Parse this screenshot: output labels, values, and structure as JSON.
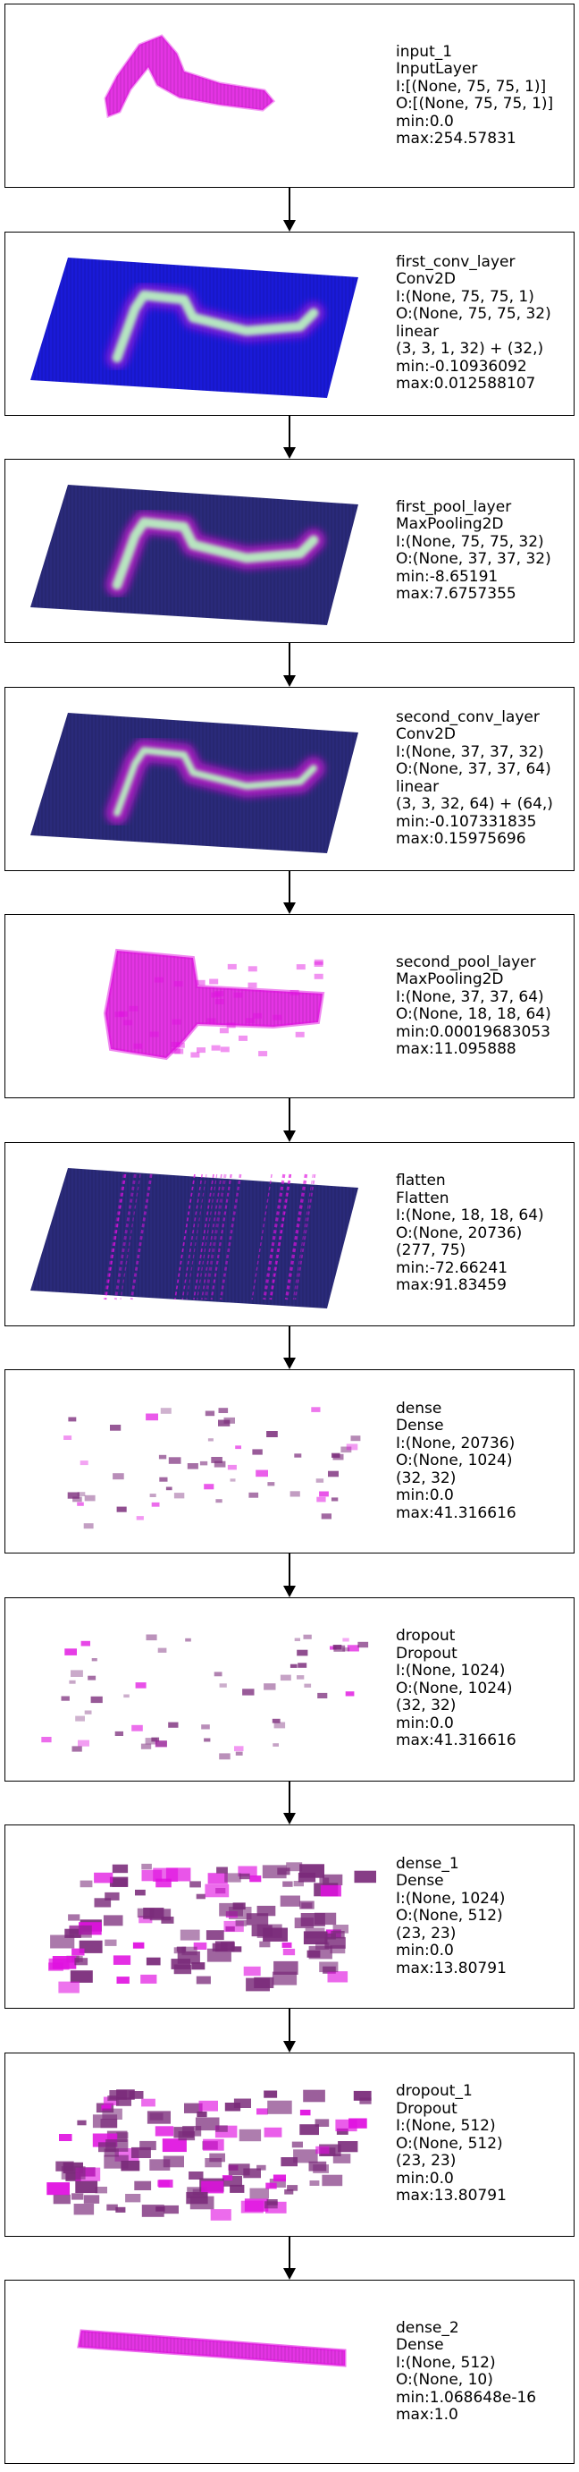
{
  "layers": [
    {
      "viz": "input-snake",
      "lines": [
        "input_1",
        "InputLayer",
        "I:[(None, 75, 75, 1)]",
        "O:[(None, 75, 75, 1)]",
        "min:0.0",
        "max:254.57831"
      ]
    },
    {
      "viz": "blue-plane-glow-snake",
      "lines": [
        "first_conv_layer",
        "Conv2D",
        "I:(None, 75, 75, 1)",
        "O:(None, 75, 75, 32)",
        "linear",
        "(3, 3, 1, 32) + (32,)",
        "min:-0.10936092",
        "max:0.012588107"
      ]
    },
    {
      "viz": "navy-plane-glow-snake",
      "lines": [
        "first_pool_layer",
        "MaxPooling2D",
        "I:(None, 75, 75, 32)",
        "O:(None, 37, 37, 32)",
        "min:-8.65191",
        "max:7.6757355"
      ]
    },
    {
      "viz": "navy-plane-faded-snake",
      "lines": [
        "second_conv_layer",
        "Conv2D",
        "I:(None, 37, 37, 32)",
        "O:(None, 37, 37, 64)",
        "linear",
        "(3, 3, 32, 64) + (64,)",
        "min:-0.107331835",
        "max:0.15975696"
      ]
    },
    {
      "viz": "magenta-blob-l-shape",
      "lines": [
        "second_pool_layer",
        "MaxPooling2D",
        "I:(None, 37, 37, 64)",
        "O:(None, 18, 18, 64)",
        "min:0.00019683053",
        "max:11.095888"
      ]
    },
    {
      "viz": "navy-plane-stripes",
      "lines": [
        "flatten",
        "Flatten",
        "I:(None, 18, 18, 64)",
        "O:(None, 20736)",
        "(277, 75)",
        "min:-72.66241",
        "max:91.83459"
      ]
    },
    {
      "viz": "sparse-scatter",
      "lines": [
        "dense",
        "Dense",
        "I:(None, 20736)",
        "O:(None, 1024)",
        "(32, 32)",
        "min:0.0",
        "max:41.316616"
      ]
    },
    {
      "viz": "sparse-scatter",
      "lines": [
        "dropout",
        "Dropout",
        "I:(None, 1024)",
        "O:(None, 1024)",
        "(32, 32)",
        "min:0.0",
        "max:41.316616"
      ]
    },
    {
      "viz": "dense-scatter",
      "lines": [
        "dense_1",
        "Dense",
        "I:(None, 1024)",
        "O:(None, 512)",
        "(23, 23)",
        "min:0.0",
        "max:13.80791"
      ]
    },
    {
      "viz": "dense-scatter",
      "lines": [
        "dropout_1",
        "Dropout",
        "I:(None, 512)",
        "O:(None, 512)",
        "(23, 23)",
        "min:0.0",
        "max:13.80791"
      ]
    },
    {
      "viz": "magenta-bar",
      "lines": [
        "dense_2",
        "Dense",
        "I:(None, 512)",
        "O:(None, 10)",
        "min:1.068648e-16",
        "max:1.0"
      ]
    }
  ],
  "colors": {
    "magenta": "#e010e0",
    "plane_blue": "#1a1ad8",
    "plane_navy": "#2a2a7a",
    "glow_green": "#b8f0c0",
    "dark_magenta": "#7a2a7a"
  }
}
